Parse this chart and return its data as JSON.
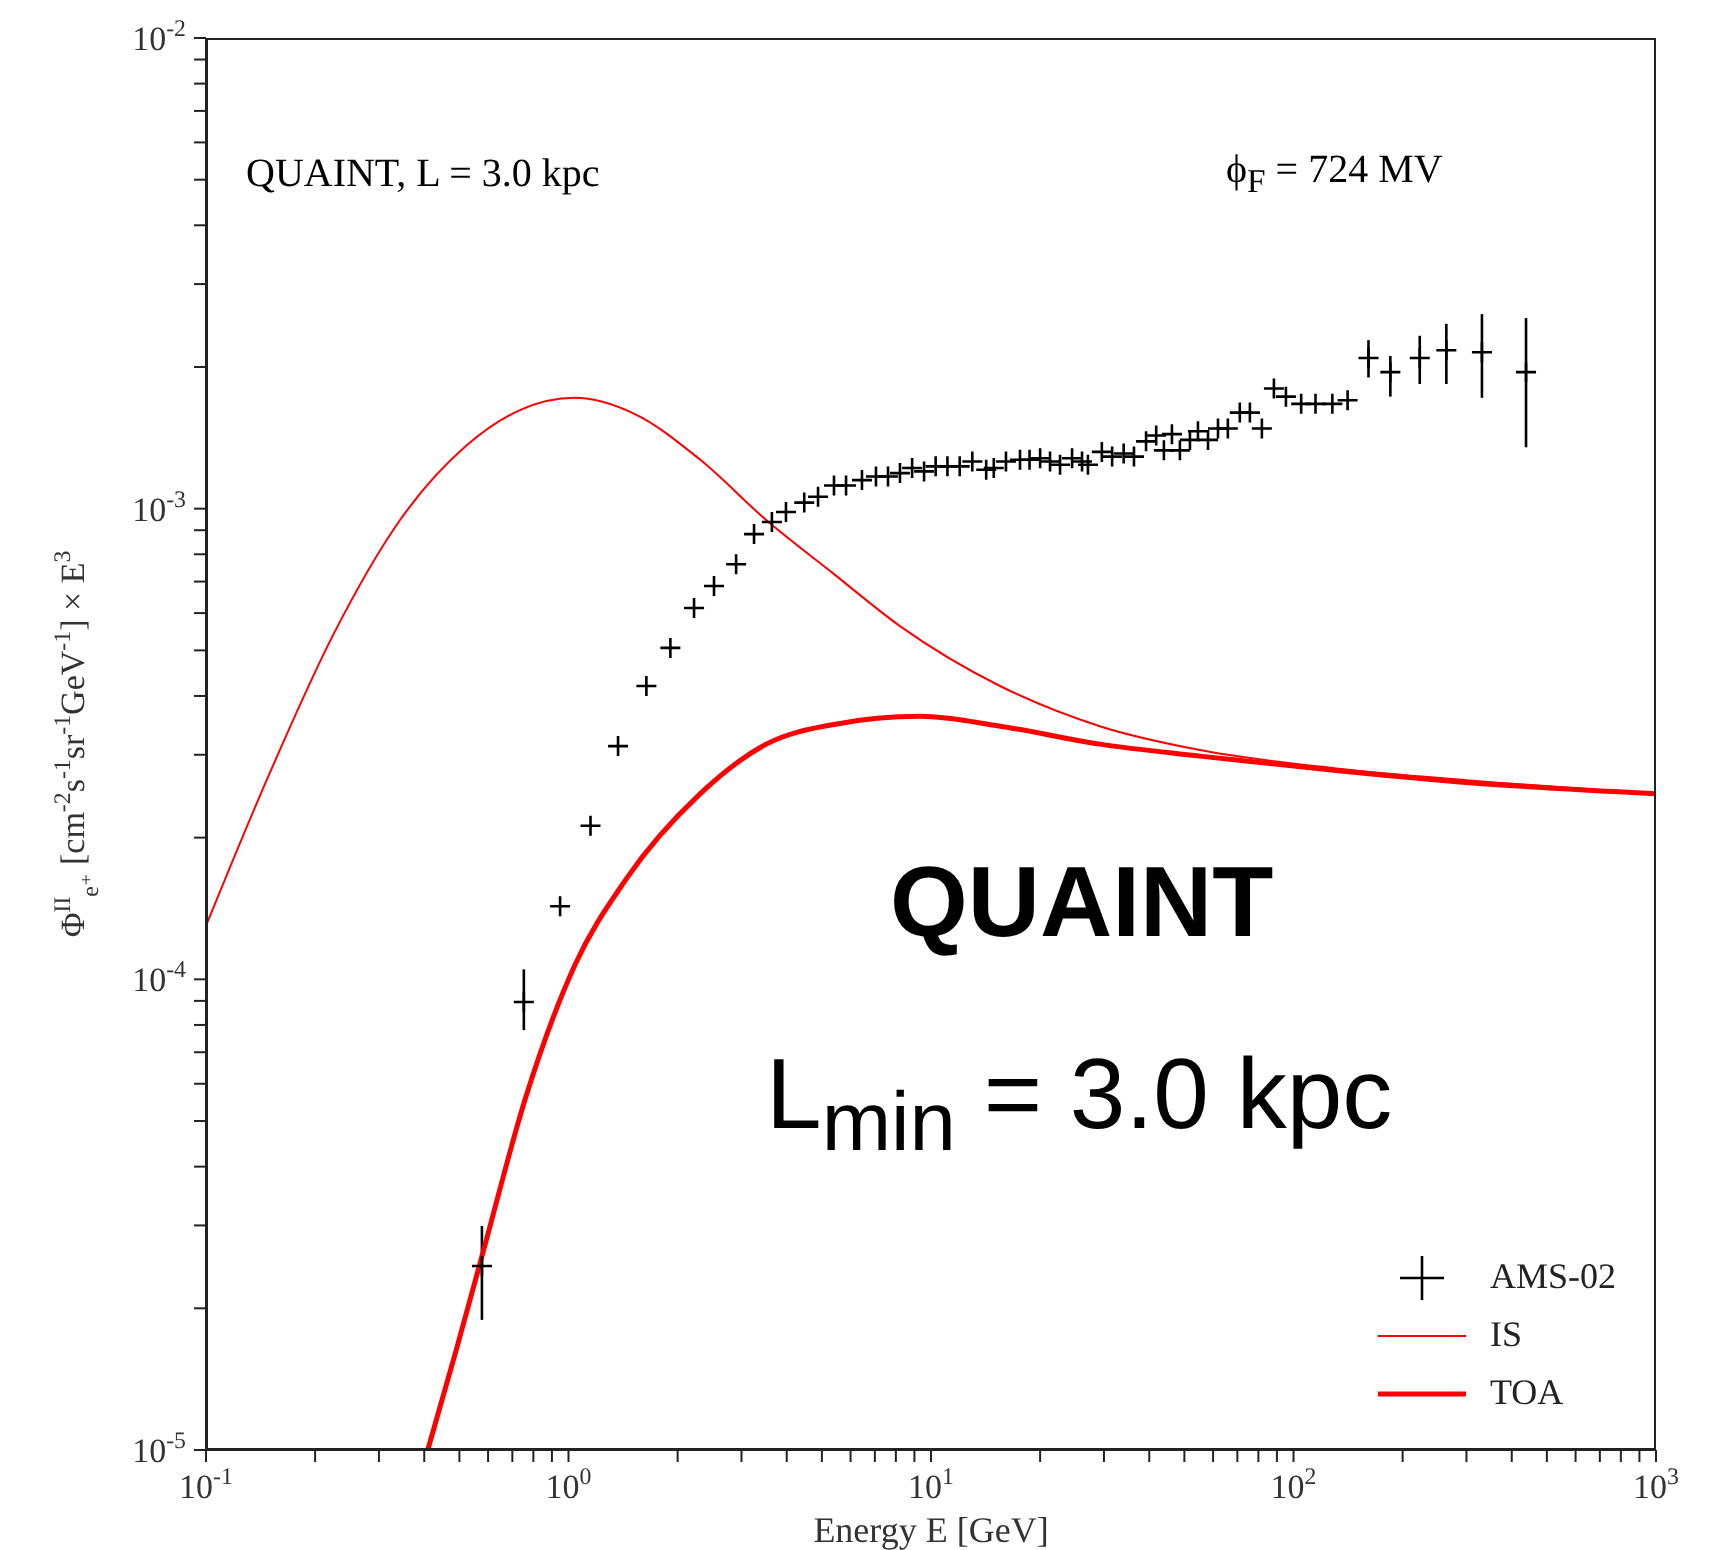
{
  "chart_data": {
    "type": "scatter",
    "xlabel": "Energy E [GeV]",
    "ylabel": "Φ$^{II}$$_{e⁺}$ [cm$^{-2}$s$^{-1}$sr$^{-1}$GeV$^{-1}$] × E$^{3}$",
    "log": "xy",
    "legend": "bottom right",
    "xlim": [
      0.1,
      1000
    ],
    "ylim": [
      1e-05,
      0.01
    ],
    "xticks": [
      {
        "value": 0.1,
        "label": "10$^{-1}$"
      },
      {
        "value": 0.2,
        "label": null
      },
      {
        "value": 0.3,
        "label": null
      },
      {
        "value": 0.4,
        "label": null
      },
      {
        "value": 0.5,
        "label": null
      },
      {
        "value": 0.6,
        "label": null
      },
      {
        "value": 0.7,
        "label": null
      },
      {
        "value": 0.8,
        "label": null
      },
      {
        "value": 0.9,
        "label": null
      },
      {
        "value": 1,
        "label": "10$^{0}$"
      },
      {
        "value": 2,
        "label": null
      },
      {
        "value": 3,
        "label": null
      },
      {
        "value": 4,
        "label": null
      },
      {
        "value": 5,
        "label": null
      },
      {
        "value": 6,
        "label": null
      },
      {
        "value": 7,
        "label": null
      },
      {
        "value": 8,
        "label": null
      },
      {
        "value": 9,
        "label": null
      },
      {
        "value": 10,
        "label": "10$^{1}$"
      },
      {
        "value": 20,
        "label": null
      },
      {
        "value": 30,
        "label": null
      },
      {
        "value": 40,
        "label": null
      },
      {
        "value": 50,
        "label": null
      },
      {
        "value": 60,
        "label": null
      },
      {
        "value": 70,
        "label": null
      },
      {
        "value": 80,
        "label": null
      },
      {
        "value": 90,
        "label": null
      },
      {
        "value": 100,
        "label": "10$^{2}$"
      },
      {
        "value": 200,
        "label": null
      },
      {
        "value": 300,
        "label": null
      },
      {
        "value": 400,
        "label": null
      },
      {
        "value": 500,
        "label": null
      },
      {
        "value": 600,
        "label": null
      },
      {
        "value": 700,
        "label": null
      },
      {
        "value": 800,
        "label": null
      },
      {
        "value": 900,
        "label": null
      },
      {
        "value": 1000,
        "label": "10$^{3}$"
      }
    ],
    "yticks": [
      {
        "value": 1e-05,
        "label": "10$^{-5}$"
      },
      {
        "value": 2e-05,
        "label": null
      },
      {
        "value": 3e-05,
        "label": null
      },
      {
        "value": 4e-05,
        "label": null
      },
      {
        "value": 5e-05,
        "label": null
      },
      {
        "value": 6e-05,
        "label": null
      },
      {
        "value": 7e-05,
        "label": null
      },
      {
        "value": 8e-05,
        "label": null
      },
      {
        "value": 9e-05,
        "label": null
      },
      {
        "value": 0.0001,
        "label": "10$^{-4}$"
      },
      {
        "value": 0.0002,
        "label": null
      },
      {
        "value": 0.0003,
        "label": null
      },
      {
        "value": 0.0004,
        "label": null
      },
      {
        "value": 0.0005,
        "label": null
      },
      {
        "value": 0.0006,
        "label": null
      },
      {
        "value": 0.0007,
        "label": null
      },
      {
        "value": 0.0008,
        "label": null
      },
      {
        "value": 0.0009,
        "label": null
      },
      {
        "value": 0.001,
        "label": "10$^{-3}$"
      },
      {
        "value": 0.002,
        "label": null
      },
      {
        "value": 0.003,
        "label": null
      },
      {
        "value": 0.004,
        "label": null
      },
      {
        "value": 0.005,
        "label": null
      },
      {
        "value": 0.006,
        "label": null
      },
      {
        "value": 0.007,
        "label": null
      },
      {
        "value": 0.008,
        "label": null
      },
      {
        "value": 0.009,
        "label": null
      },
      {
        "value": 0.01,
        "label": "10$^{-2}$"
      }
    ],
    "annotations": [
      "QUAINT, L = 3.0 kpc",
      "ϕ$_{F}$ = 724 MV",
      "QUAINT",
      "L$_{min}$ = 3.0 kpc"
    ],
    "series": [
      {
        "name": "AMS-02",
        "type": "scatter",
        "marker": "cross",
        "color": "#000000",
        "x": [
          0.577,
          0.753,
          0.948,
          1.15,
          1.37,
          1.64,
          1.91,
          2.22,
          2.52,
          2.9,
          3.25,
          3.64,
          3.98,
          4.47,
          4.88,
          5.4,
          5.83,
          6.45,
          7.05,
          7.61,
          8.21,
          8.87,
          9.57,
          10.3,
          11.1,
          12,
          13,
          14.2,
          14.9,
          16.1,
          17.6,
          18.7,
          20,
          21.3,
          22.7,
          24.5,
          26.1,
          27.1,
          29.6,
          31.6,
          34,
          36.3,
          39.2,
          41.8,
          43.9,
          46.2,
          48.6,
          51.8,
          54.5,
          58.1,
          61.9,
          65.9,
          71.1,
          75.8,
          81.8,
          88.3,
          95.3,
          105,
          115,
          128,
          141,
          161,
          185,
          223,
          264,
          331,
          438
        ],
        "values": [
          2.46e-05,
          8.95e-05,
          0.000143,
          0.000212,
          0.000313,
          0.00042,
          0.000506,
          0.000615,
          0.000685,
          0.000762,
          0.000883,
          0.000937,
          0.000984,
          0.00103,
          0.00106,
          0.00112,
          0.00112,
          0.00115,
          0.00117,
          0.00117,
          0.00119,
          0.00122,
          0.0012,
          0.00123,
          0.00123,
          0.00123,
          0.00126,
          0.00121,
          0.00122,
          0.00126,
          0.00127,
          0.00127,
          0.00128,
          0.00126,
          0.00124,
          0.00128,
          0.00126,
          0.00124,
          0.00132,
          0.00129,
          0.00131,
          0.00129,
          0.00139,
          0.00143,
          0.00133,
          0.00144,
          0.00133,
          0.0014,
          0.00146,
          0.0014,
          0.00148,
          0.00148,
          0.0016,
          0.0016,
          0.00148,
          0.0018,
          0.00173,
          0.00167,
          0.00167,
          0.00167,
          0.0017,
          0.00209,
          0.00195,
          0.00209,
          0.00217,
          0.00215,
          0.00195
        ],
        "errors": [
          [
            1.89e-05,
            2.99e-05
          ],
          [
            7.8e-05,
            0.000105
          ],
          null,
          null,
          null,
          null,
          null,
          null,
          null,
          null,
          null,
          null,
          null,
          null,
          null,
          null,
          null,
          null,
          null,
          null,
          null,
          null,
          null,
          null,
          null,
          null,
          null,
          null,
          null,
          null,
          null,
          null,
          null,
          null,
          null,
          null,
          null,
          null,
          null,
          null,
          null,
          null,
          null,
          null,
          null,
          null,
          null,
          null,
          null,
          null,
          null,
          null,
          null,
          null,
          null,
          null,
          null,
          null,
          null,
          null,
          null,
          [
            0.0019,
            0.00228
          ],
          [
            0.00173,
            0.00211
          ],
          [
            0.00184,
            0.00233
          ],
          [
            0.00184,
            0.00247
          ],
          [
            0.00172,
            0.00259
          ],
          [
            0.00135,
            0.00254
          ]
        ]
      },
      {
        "name": "IS",
        "type": "line",
        "color": "#ff0000",
        "x": [
          0.1,
          0.147,
          0.225,
          0.343,
          0.522,
          0.735,
          1.04,
          1.52,
          2.31,
          3.51,
          5.4,
          8.21,
          15.5,
          29.2,
          55.2,
          129,
          299,
          1000
        ],
        "values": [
          0.00013,
          0.000265,
          0.000542,
          0.000946,
          0.00136,
          0.00162,
          0.00172,
          0.00159,
          0.00127,
          0.000946,
          0.000726,
          0.000563,
          0.00042,
          0.000345,
          0.000307,
          0.000281,
          0.000265,
          0.000248
        ]
      },
      {
        "name": "TOA",
        "type": "line",
        "color": "#ff0000",
        "x": [
          0.409,
          0.49,
          0.577,
          0.764,
          1.04,
          1.44,
          2.31,
          3.51,
          5.4,
          9.33,
          15.5,
          29.2,
          55.2,
          129,
          299,
          1000
        ],
        "values": [
          1e-05,
          1.63e-05,
          2.58e-05,
          5.65e-05,
          0.000107,
          0.000163,
          0.000248,
          0.000316,
          0.000348,
          0.000362,
          0.000345,
          0.000316,
          0.000298,
          0.000278,
          0.000262,
          0.000248
        ]
      }
    ]
  }
}
